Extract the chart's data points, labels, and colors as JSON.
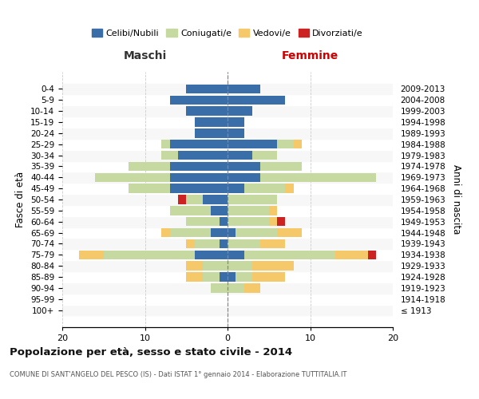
{
  "age_groups": [
    "100+",
    "95-99",
    "90-94",
    "85-89",
    "80-84",
    "75-79",
    "70-74",
    "65-69",
    "60-64",
    "55-59",
    "50-54",
    "45-49",
    "40-44",
    "35-39",
    "30-34",
    "25-29",
    "20-24",
    "15-19",
    "10-14",
    "5-9",
    "0-4"
  ],
  "birth_years": [
    "≤ 1913",
    "1914-1918",
    "1919-1923",
    "1924-1928",
    "1929-1933",
    "1934-1938",
    "1939-1943",
    "1944-1948",
    "1949-1953",
    "1954-1958",
    "1959-1963",
    "1964-1968",
    "1969-1973",
    "1974-1978",
    "1979-1983",
    "1984-1988",
    "1989-1993",
    "1994-1998",
    "1999-2003",
    "2004-2008",
    "2009-2013"
  ],
  "males": {
    "celibi": [
      0,
      0,
      0,
      1,
      0,
      4,
      1,
      2,
      1,
      2,
      3,
      7,
      7,
      7,
      6,
      7,
      4,
      4,
      5,
      7,
      5
    ],
    "coniugati": [
      0,
      0,
      2,
      2,
      3,
      11,
      3,
      5,
      4,
      5,
      2,
      5,
      9,
      5,
      2,
      1,
      0,
      0,
      0,
      0,
      0
    ],
    "vedovi": [
      0,
      0,
      0,
      2,
      2,
      3,
      1,
      1,
      0,
      0,
      0,
      0,
      0,
      0,
      0,
      0,
      0,
      0,
      0,
      0,
      0
    ],
    "divorziati": [
      0,
      0,
      0,
      0,
      0,
      0,
      0,
      0,
      0,
      0,
      1,
      0,
      0,
      0,
      0,
      0,
      0,
      0,
      0,
      0,
      0
    ]
  },
  "females": {
    "nubili": [
      0,
      0,
      0,
      1,
      0,
      2,
      0,
      1,
      0,
      0,
      0,
      2,
      4,
      4,
      3,
      6,
      2,
      2,
      3,
      7,
      4
    ],
    "coniugate": [
      0,
      0,
      2,
      2,
      3,
      11,
      4,
      5,
      5,
      5,
      6,
      5,
      14,
      5,
      3,
      2,
      0,
      0,
      0,
      0,
      0
    ],
    "vedove": [
      0,
      0,
      2,
      4,
      5,
      4,
      3,
      3,
      1,
      1,
      0,
      1,
      0,
      0,
      0,
      1,
      0,
      0,
      0,
      0,
      0
    ],
    "divorziate": [
      0,
      0,
      0,
      0,
      0,
      1,
      0,
      0,
      1,
      0,
      0,
      0,
      0,
      0,
      0,
      0,
      0,
      0,
      0,
      0,
      0
    ]
  },
  "colors": {
    "celibi_nubili": "#3a6ea8",
    "coniugati": "#c5d9a0",
    "vedovi": "#f5c96a",
    "divorziati": "#cc2222"
  },
  "xlim": [
    -20,
    20
  ],
  "xticks": [
    -20,
    -10,
    0,
    10,
    20
  ],
  "xticklabels": [
    "20",
    "10",
    "0",
    "10",
    "20"
  ],
  "title": "Popolazione per età, sesso e stato civile - 2014",
  "subtitle": "COMUNE DI SANT'ANGELO DEL PESCO (IS) - Dati ISTAT 1° gennaio 2014 - Elaborazione TUTTITALIA.IT",
  "ylabel": "Fasce di età",
  "ylabel_right": "Anni di nascita",
  "label_maschi": "Maschi",
  "label_femmine": "Femmine",
  "legend_celibi": "Celibi/Nubili",
  "legend_coniugati": "Coniugati/e",
  "legend_vedovi": "Vedovi/e",
  "legend_divorziati": "Divorziati/e",
  "bg_color": "#ffffff"
}
